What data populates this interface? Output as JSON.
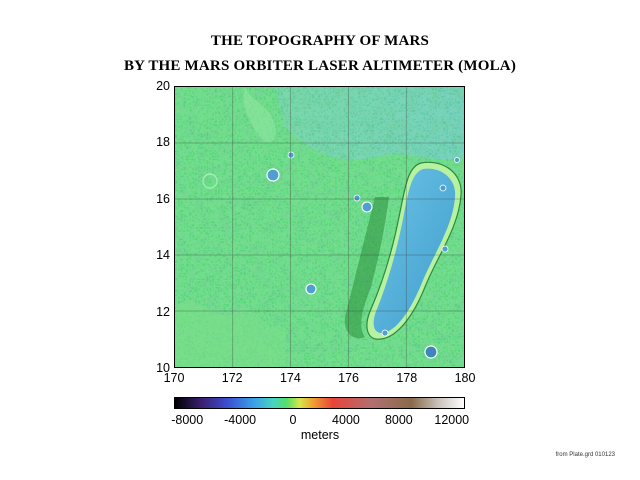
{
  "title_line1": "THE TOPOGRAPHY OF MARS",
  "title_line2": "BY THE MARS ORBITER LASER ALTIMETER (MOLA)",
  "map": {
    "longitude_ticks": [
      "170",
      "172",
      "174",
      "176",
      "178",
      "180"
    ],
    "latitude_ticks": [
      "20",
      "18",
      "16",
      "14",
      "12",
      "10"
    ],
    "lon_range": [
      170,
      180
    ],
    "lat_range": [
      10,
      20
    ],
    "grid": "on",
    "basin_color": "#4fb0d8",
    "terrain_color": "#58d67a"
  },
  "colorbar": {
    "labels": [
      "-8000",
      "-4000",
      "0",
      "4000",
      "8000",
      "12000"
    ],
    "unit": "meters",
    "range": [
      -9000,
      13000
    ],
    "stops": [
      {
        "value": -9000,
        "color": "#000000"
      },
      {
        "value": -7000,
        "color": "#3a1f6e"
      },
      {
        "value": -5000,
        "color": "#3b4fd1"
      },
      {
        "value": -3000,
        "color": "#3aa0e8"
      },
      {
        "value": -1500,
        "color": "#47d6c0"
      },
      {
        "value": -500,
        "color": "#55de6a"
      },
      {
        "value": 500,
        "color": "#d6e64a"
      },
      {
        "value": 1500,
        "color": "#f0a030"
      },
      {
        "value": 3000,
        "color": "#e8443a"
      },
      {
        "value": 6000,
        "color": "#b07070"
      },
      {
        "value": 9000,
        "color": "#8a6a4a"
      },
      {
        "value": 11000,
        "color": "#c8c0b8"
      },
      {
        "value": 13000,
        "color": "#ffffff"
      }
    ]
  },
  "credit": "from Plate.grd 010123"
}
